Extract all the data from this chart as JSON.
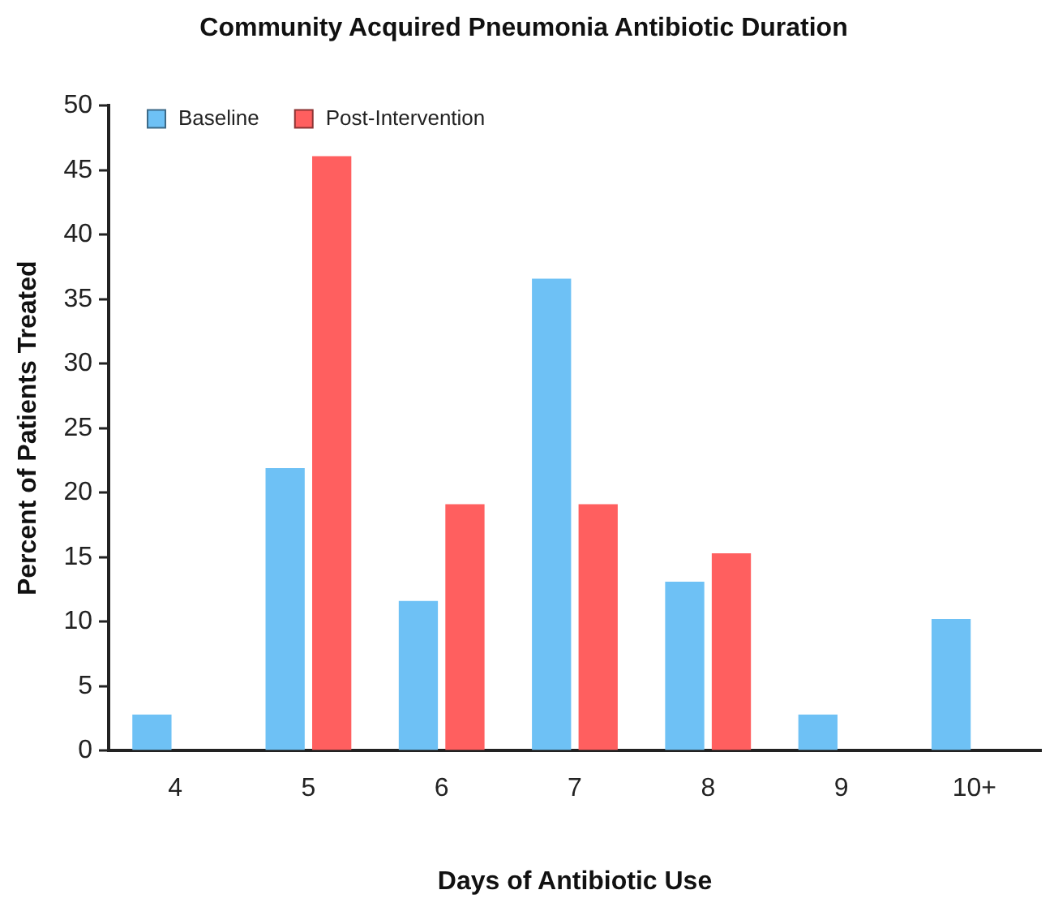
{
  "chart_data": {
    "type": "bar",
    "title": "Community Acquired Pneumonia Antibiotic Duration",
    "xlabel": "Days of Antibiotic Use",
    "ylabel": "Percent of Patients Treated",
    "categories": [
      "4",
      "5",
      "6",
      "7",
      "8",
      "9",
      "10+"
    ],
    "series": [
      {
        "name": "Baseline",
        "color": "#6ec1f5",
        "values": [
          2.8,
          21.9,
          11.6,
          36.6,
          13.1,
          2.8,
          10.2
        ]
      },
      {
        "name": "Post-Intervention",
        "color": "#ff5f5f",
        "values": [
          null,
          46.1,
          19.1,
          19.1,
          15.3,
          null,
          null
        ]
      }
    ],
    "ylim": [
      0,
      50
    ],
    "yticks": [
      0,
      5,
      10,
      15,
      20,
      25,
      30,
      35,
      40,
      45,
      50
    ],
    "grid": false,
    "legend": "top left"
  }
}
